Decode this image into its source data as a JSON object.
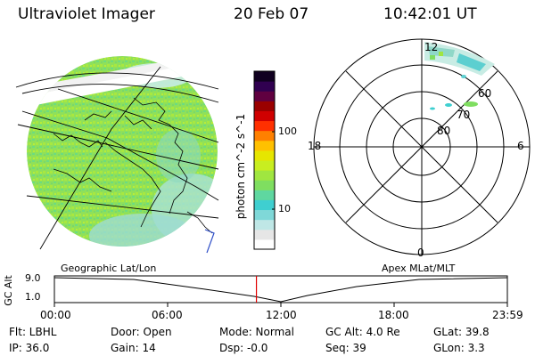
{
  "header": {
    "instrument": "Ultraviolet Imager",
    "date": "20 Feb 07",
    "time": "10:42:01 UT"
  },
  "colorbar": {
    "label": "photon cm^-2 s^-1",
    "ticks": [
      "100",
      "10"
    ],
    "colors": [
      "#ffffff",
      "#e6e6e6",
      "#bfe7e6",
      "#7fd8d8",
      "#3fcfd0",
      "#5fd7a0",
      "#7fde60",
      "#a0e640",
      "#c8ee20",
      "#e6e600",
      "#ffc000",
      "#ff8000",
      "#ff3000",
      "#d00000",
      "#9a0000",
      "#600040",
      "#300050",
      "#100020"
    ]
  },
  "polar": {
    "mlt_labels": {
      "top": "12",
      "left": "18",
      "right": "6",
      "bottom": "0"
    },
    "lat_labels": [
      "60",
      "70",
      "80"
    ]
  },
  "timeline": {
    "left_label": "Geographic Lat/Lon",
    "right_label": "Apex MLat/MLT",
    "y_axis_label": "GC Alt",
    "y_ticks": [
      "9.0",
      "1.0"
    ],
    "x_ticks": [
      "00:00",
      "06:00",
      "12:00",
      "18:00",
      "23:59"
    ],
    "current_time_fraction": 0.446
  },
  "footer": {
    "flt": "Flt: LBHL",
    "ip": "IP: 36.0",
    "door": "Door: Open",
    "gain": "Gain: 14",
    "mode": "Mode: Normal",
    "dsp": "Dsp:   -0.0",
    "gcalt": "GC Alt: 4.0 Re",
    "seq": "Seq: 39",
    "glat": "GLat:  39.8",
    "glon": "GLon:   3.3"
  }
}
